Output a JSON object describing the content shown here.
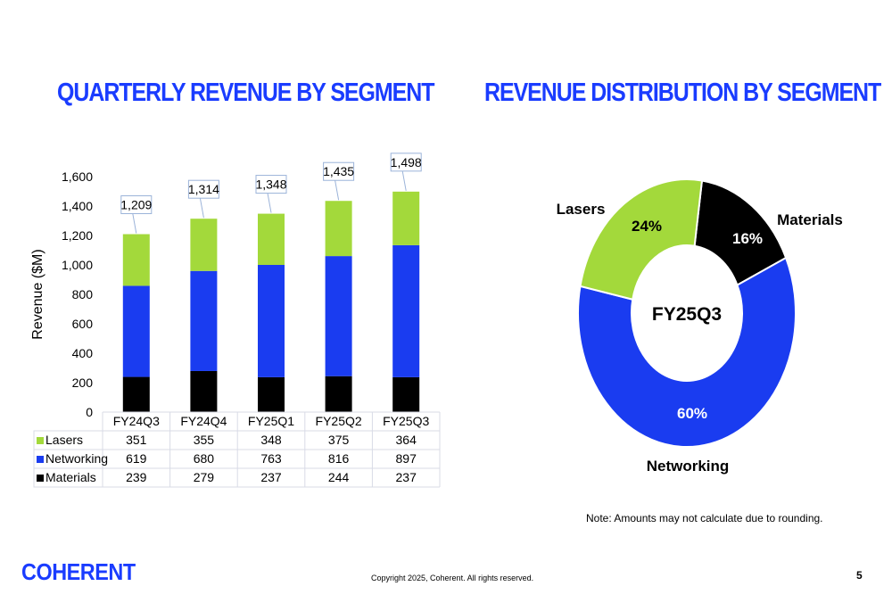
{
  "titles": {
    "left": "QUARTERLY REVENUE BY SEGMENT",
    "right": "REVENUE DISTRIBUTION BY SEGMENT"
  },
  "chart_data": [
    {
      "type": "bar",
      "stacked": true,
      "title": "QUARTERLY REVENUE BY SEGMENT",
      "ylabel": "Revenue ($M)",
      "ylim": [
        0,
        1600
      ],
      "yticks": [
        "0",
        "200",
        "400",
        "600",
        "800",
        "1,000",
        "1,200",
        "1,400",
        "1,600"
      ],
      "categories": [
        "FY24Q3",
        "FY24Q4",
        "FY25Q1",
        "FY25Q2",
        "FY25Q3"
      ],
      "series": [
        {
          "name": "Lasers",
          "values": [
            351,
            355,
            348,
            375,
            364
          ],
          "color": "#a3d93b"
        },
        {
          "name": "Networking",
          "values": [
            619,
            680,
            763,
            816,
            897
          ],
          "color": "#1a3cf0"
        },
        {
          "name": "Materials",
          "values": [
            239,
            279,
            237,
            244,
            237
          ],
          "color": "#000000"
        }
      ],
      "totals": [
        "1,209",
        "1,314",
        "1,348",
        "1,435",
        "1,498"
      ],
      "table_values": [
        [
          "351",
          "355",
          "348",
          "375",
          "364"
        ],
        [
          "619",
          "680",
          "763",
          "816",
          "897"
        ],
        [
          "239",
          "279",
          "237",
          "244",
          "237"
        ]
      ]
    },
    {
      "type": "pie",
      "title": "REVENUE DISTRIBUTION BY SEGMENT",
      "center_label": "FY25Q3",
      "slices": [
        {
          "name": "Materials",
          "value": 16,
          "label": "16%",
          "color": "#000000"
        },
        {
          "name": "Networking",
          "value": 60,
          "label": "60%",
          "color": "#1a3cf0"
        },
        {
          "name": "Lasers",
          "value": 24,
          "label": "24%",
          "color": "#a3d93b"
        }
      ]
    }
  ],
  "footer": {
    "note": "Note: Amounts may not calculate due to rounding.",
    "copyright": "Copyright 2025, Coherent. All rights reserved.",
    "page": "5",
    "logo": "COHERENT"
  }
}
